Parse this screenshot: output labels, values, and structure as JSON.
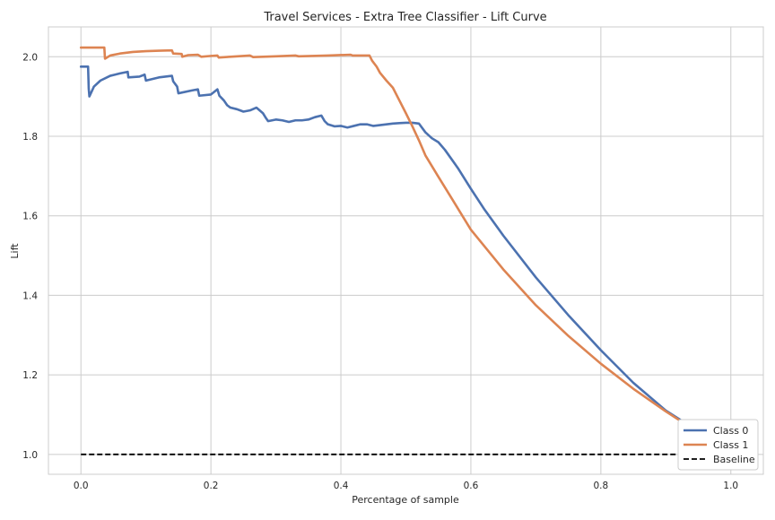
{
  "chart_data": {
    "type": "line",
    "title": "Travel Services - Extra Tree Classifier - Lift Curve",
    "xlabel": "Percentage of sample",
    "ylabel": "Lift",
    "xlim": [
      -0.05,
      1.05
    ],
    "ylim": [
      0.95,
      2.075
    ],
    "x_ticks": [
      0.0,
      0.2,
      0.4,
      0.6,
      0.8,
      1.0
    ],
    "x_tick_labels": [
      "0.0",
      "0.2",
      "0.4",
      "0.6",
      "0.8",
      "1.0"
    ],
    "y_ticks": [
      1.0,
      1.2,
      1.4,
      1.6,
      1.8,
      2.0
    ],
    "y_tick_labels": [
      "1.0",
      "1.2",
      "1.4",
      "1.6",
      "1.8",
      "2.0"
    ],
    "grid": true,
    "legend_position": "bottom-right",
    "series": [
      {
        "name": "Class 0",
        "color": "#4c72b0",
        "style": "solid",
        "points": [
          [
            0.0,
            1.975
          ],
          [
            0.011,
            1.975
          ],
          [
            0.012,
            1.92
          ],
          [
            0.013,
            1.9
          ],
          [
            0.02,
            1.925
          ],
          [
            0.03,
            1.94
          ],
          [
            0.045,
            1.952
          ],
          [
            0.06,
            1.958
          ],
          [
            0.072,
            1.962
          ],
          [
            0.073,
            1.948
          ],
          [
            0.09,
            1.95
          ],
          [
            0.098,
            1.955
          ],
          [
            0.1,
            1.94
          ],
          [
            0.12,
            1.948
          ],
          [
            0.14,
            1.952
          ],
          [
            0.142,
            1.938
          ],
          [
            0.148,
            1.925
          ],
          [
            0.15,
            1.908
          ],
          [
            0.17,
            1.915
          ],
          [
            0.18,
            1.918
          ],
          [
            0.182,
            1.902
          ],
          [
            0.2,
            1.905
          ],
          [
            0.21,
            1.918
          ],
          [
            0.213,
            1.902
          ],
          [
            0.22,
            1.89
          ],
          [
            0.225,
            1.878
          ],
          [
            0.23,
            1.872
          ],
          [
            0.24,
            1.868
          ],
          [
            0.245,
            1.865
          ],
          [
            0.25,
            1.862
          ],
          [
            0.26,
            1.865
          ],
          [
            0.27,
            1.872
          ],
          [
            0.28,
            1.858
          ],
          [
            0.285,
            1.845
          ],
          [
            0.288,
            1.838
          ],
          [
            0.3,
            1.842
          ],
          [
            0.31,
            1.84
          ],
          [
            0.32,
            1.836
          ],
          [
            0.33,
            1.84
          ],
          [
            0.34,
            1.84
          ],
          [
            0.35,
            1.842
          ],
          [
            0.36,
            1.848
          ],
          [
            0.37,
            1.852
          ],
          [
            0.375,
            1.838
          ],
          [
            0.38,
            1.83
          ],
          [
            0.39,
            1.825
          ],
          [
            0.4,
            1.826
          ],
          [
            0.41,
            1.822
          ],
          [
            0.42,
            1.826
          ],
          [
            0.43,
            1.83
          ],
          [
            0.44,
            1.83
          ],
          [
            0.45,
            1.826
          ],
          [
            0.46,
            1.828
          ],
          [
            0.47,
            1.83
          ],
          [
            0.48,
            1.832
          ],
          [
            0.49,
            1.833
          ],
          [
            0.5,
            1.834
          ],
          [
            0.51,
            1.834
          ],
          [
            0.52,
            1.832
          ],
          [
            0.53,
            1.81
          ],
          [
            0.54,
            1.795
          ],
          [
            0.55,
            1.785
          ],
          [
            0.56,
            1.766
          ],
          [
            0.58,
            1.72
          ],
          [
            0.6,
            1.668
          ],
          [
            0.62,
            1.618
          ],
          [
            0.65,
            1.55
          ],
          [
            0.7,
            1.445
          ],
          [
            0.75,
            1.35
          ],
          [
            0.8,
            1.262
          ],
          [
            0.85,
            1.18
          ],
          [
            0.9,
            1.11
          ],
          [
            0.95,
            1.058
          ],
          [
            1.0,
            1.0
          ]
        ]
      },
      {
        "name": "Class 1",
        "color": "#dd8452",
        "style": "solid",
        "points": [
          [
            0.0,
            2.023
          ],
          [
            0.036,
            2.023
          ],
          [
            0.037,
            1.995
          ],
          [
            0.045,
            2.003
          ],
          [
            0.06,
            2.008
          ],
          [
            0.08,
            2.012
          ],
          [
            0.1,
            2.014
          ],
          [
            0.12,
            2.015
          ],
          [
            0.14,
            2.016
          ],
          [
            0.142,
            2.008
          ],
          [
            0.155,
            2.007
          ],
          [
            0.156,
            2.0
          ],
          [
            0.165,
            2.004
          ],
          [
            0.18,
            2.005
          ],
          [
            0.185,
            2.0
          ],
          [
            0.2,
            2.002
          ],
          [
            0.21,
            2.003
          ],
          [
            0.212,
            1.998
          ],
          [
            0.23,
            2.0
          ],
          [
            0.26,
            2.003
          ],
          [
            0.265,
            1.999
          ],
          [
            0.3,
            2.001
          ],
          [
            0.33,
            2.003
          ],
          [
            0.335,
            2.001
          ],
          [
            0.38,
            2.003
          ],
          [
            0.415,
            2.005
          ],
          [
            0.418,
            2.003
          ],
          [
            0.444,
            2.003
          ],
          [
            0.448,
            1.99
          ],
          [
            0.455,
            1.975
          ],
          [
            0.46,
            1.96
          ],
          [
            0.47,
            1.94
          ],
          [
            0.48,
            1.922
          ],
          [
            0.49,
            1.89
          ],
          [
            0.5,
            1.858
          ],
          [
            0.51,
            1.825
          ],
          [
            0.52,
            1.79
          ],
          [
            0.53,
            1.752
          ],
          [
            0.55,
            1.698
          ],
          [
            0.57,
            1.645
          ],
          [
            0.6,
            1.565
          ],
          [
            0.62,
            1.525
          ],
          [
            0.65,
            1.465
          ],
          [
            0.7,
            1.375
          ],
          [
            0.75,
            1.298
          ],
          [
            0.8,
            1.228
          ],
          [
            0.85,
            1.165
          ],
          [
            0.9,
            1.108
          ],
          [
            0.95,
            1.055
          ],
          [
            1.0,
            1.0
          ]
        ]
      },
      {
        "name": "Baseline",
        "color": "#000000",
        "style": "dashed",
        "points": [
          [
            0.0,
            1.0
          ],
          [
            1.0,
            1.0
          ]
        ]
      }
    ]
  }
}
